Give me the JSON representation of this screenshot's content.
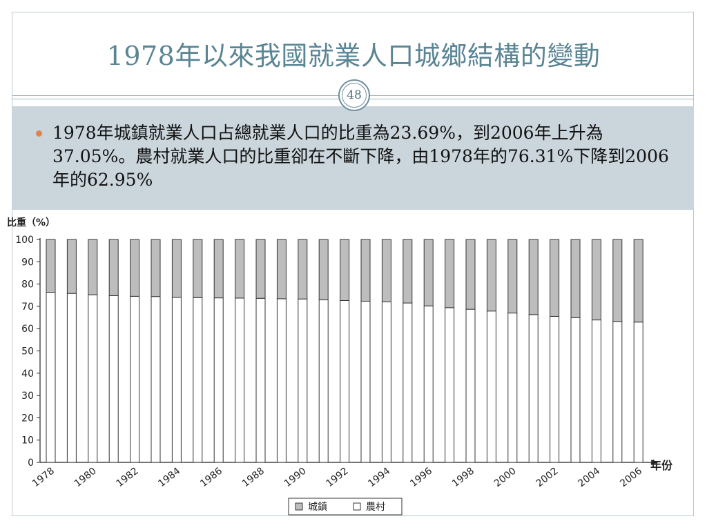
{
  "slide": {
    "title": "1978年以來我國就業人口城鄉結構的變動",
    "page_number": "48",
    "bullet_text": "1978年城鎮就業人口占總就業人口的比重為23.69%，到2006年上升為37.05%。農村就業人口的比重卻在不斷下降，由1978年的76.31%下降到2006年的62.95%"
  },
  "colors": {
    "title": "#5a8594",
    "band": "#cbd5dc",
    "bullet": "#e0834d",
    "urban_fill": "#bdbdbd",
    "rural_fill": "#ffffff"
  },
  "chart_data": {
    "type": "bar",
    "stacked": true,
    "ylabel": "比重（%）",
    "xlabel": "年份",
    "ylim": [
      0,
      100
    ],
    "yticks": [
      0,
      10,
      20,
      30,
      40,
      50,
      60,
      70,
      80,
      90,
      100
    ],
    "categories": [
      "1978",
      "1979",
      "1980",
      "1981",
      "1982",
      "1983",
      "1984",
      "1985",
      "1986",
      "1987",
      "1988",
      "1989",
      "1990",
      "1991",
      "1992",
      "1993",
      "1994",
      "1995",
      "1996",
      "1997",
      "1998",
      "1999",
      "2000",
      "2001",
      "2002",
      "2003",
      "2004",
      "2005",
      "2006"
    ],
    "xtick_labels": [
      "1978",
      "1980",
      "1982",
      "1984",
      "1986",
      "1988",
      "1990",
      "1992",
      "1994",
      "1996",
      "1998",
      "2000",
      "2002",
      "2004",
      "2006"
    ],
    "series": [
      {
        "name": "農村",
        "values": [
          76.31,
          75.8,
          75.2,
          74.8,
          74.5,
          74.4,
          74.0,
          73.9,
          73.8,
          73.7,
          73.6,
          73.4,
          73.3,
          72.9,
          72.6,
          72.3,
          72.0,
          71.5,
          70.2,
          69.4,
          68.7,
          67.9,
          67.0,
          66.3,
          65.5,
          64.9,
          63.9,
          63.2,
          62.95
        ]
      },
      {
        "name": "城鎮",
        "values": [
          23.69,
          24.2,
          24.8,
          25.2,
          25.5,
          25.6,
          26.0,
          26.1,
          26.2,
          26.3,
          26.4,
          26.6,
          26.7,
          27.1,
          27.4,
          27.7,
          28.0,
          28.5,
          29.8,
          30.6,
          31.3,
          32.1,
          33.0,
          33.7,
          34.5,
          35.1,
          36.1,
          36.8,
          37.05
        ]
      }
    ],
    "legend": {
      "placement": "bottom-center",
      "items": [
        "城鎮",
        "農村"
      ]
    },
    "grid": false
  }
}
